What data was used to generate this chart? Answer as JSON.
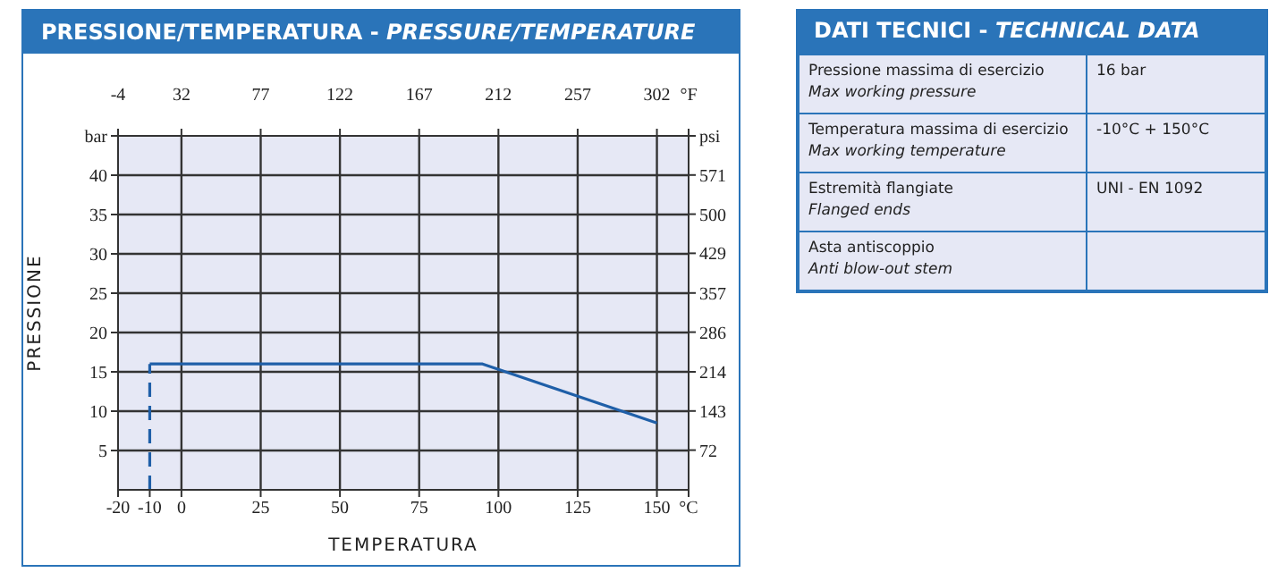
{
  "chart_data": [
    {
      "type": "line",
      "title": "PRESSIONE/TEMPERATURA - PRESSURE/TEMPERATURE",
      "xlabel": "TEMPERATURA",
      "ylabel": "PRESSIONE",
      "series": [
        {
          "color": "#1f5fa8",
          "line_style": "dashed",
          "x": [
            -10,
            -10
          ],
          "values": [
            0,
            16
          ]
        },
        {
          "color": "#1f5fa8",
          "line_style": "solid",
          "x": [
            -10,
            95,
            150
          ],
          "values": [
            16,
            16,
            8.5
          ]
        }
      ],
      "xlim": [
        -20,
        160
      ],
      "xticks": [
        -20,
        -10,
        0,
        25,
        50,
        75,
        100,
        125,
        150,
        {
          "value": 160,
          "label": "°C"
        }
      ],
      "x2lim": [
        -4,
        320
      ],
      "x2ticks": [
        -4,
        32,
        77,
        122,
        167,
        212,
        257,
        302,
        {
          "value": 320,
          "label": "°F"
        }
      ],
      "ylim": [
        0,
        45
      ],
      "yticks": [
        5,
        10,
        15,
        20,
        25,
        30,
        35,
        40,
        {
          "value": 45,
          "label": "bar"
        }
      ],
      "y2lim": [
        0,
        642
      ],
      "y2ticks": [
        72,
        143,
        214,
        286,
        357,
        429,
        500,
        571,
        {
          "value": 642,
          "label": "psi"
        }
      ],
      "grid": true,
      "marker": "none"
    },
    {
      "type": "other",
      "title": "DATI TECNICI - TECHNICAL DATA",
      "annotations": [
        "Pressione massima di esercizio",
        "Max working pressure",
        "16 bar",
        "Temperatura massima di esercizio",
        "Max working temperature",
        "-10°C + 150°C",
        "Estremità flangiate",
        "Flanged ends",
        "UNI - EN 1092",
        "Asta antiscoppio",
        "Anti blow-out stem"
      ]
    }
  ]
}
